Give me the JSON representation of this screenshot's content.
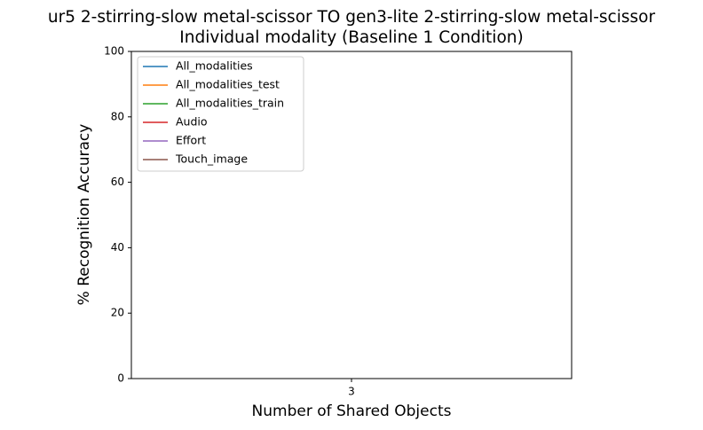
{
  "chart_data": {
    "type": "line",
    "title": "ur5 2-stirring-slow metal-scissor TO gen3-lite 2-stirring-slow metal-scissor",
    "subtitle": "Individual modality (Baseline 1 Condition)",
    "x_label": "Number of Shared Objects",
    "y_label": "% Recognition Accuracy",
    "x": [
      3
    ],
    "series": [
      {
        "name": "All_modalities",
        "color": "#1f77b4",
        "values": [
          null
        ]
      },
      {
        "name": "All_modalities_test",
        "color": "#ff7f0e",
        "values": [
          null
        ]
      },
      {
        "name": "All_modalities_train",
        "color": "#2ca02c",
        "values": [
          null
        ]
      },
      {
        "name": "Audio",
        "color": "#d62728",
        "values": [
          null
        ]
      },
      {
        "name": "Effort",
        "color": "#9467bd",
        "values": [
          null
        ]
      },
      {
        "name": "Touch_image",
        "color": "#8c564b",
        "values": [
          null
        ]
      }
    ],
    "xlim": [
      2.95,
      3.05
    ],
    "xticks": [
      3
    ],
    "ylim": [
      0,
      100
    ],
    "yticks": [
      0,
      20,
      40,
      60,
      80,
      100
    ],
    "legend": "upper left"
  }
}
